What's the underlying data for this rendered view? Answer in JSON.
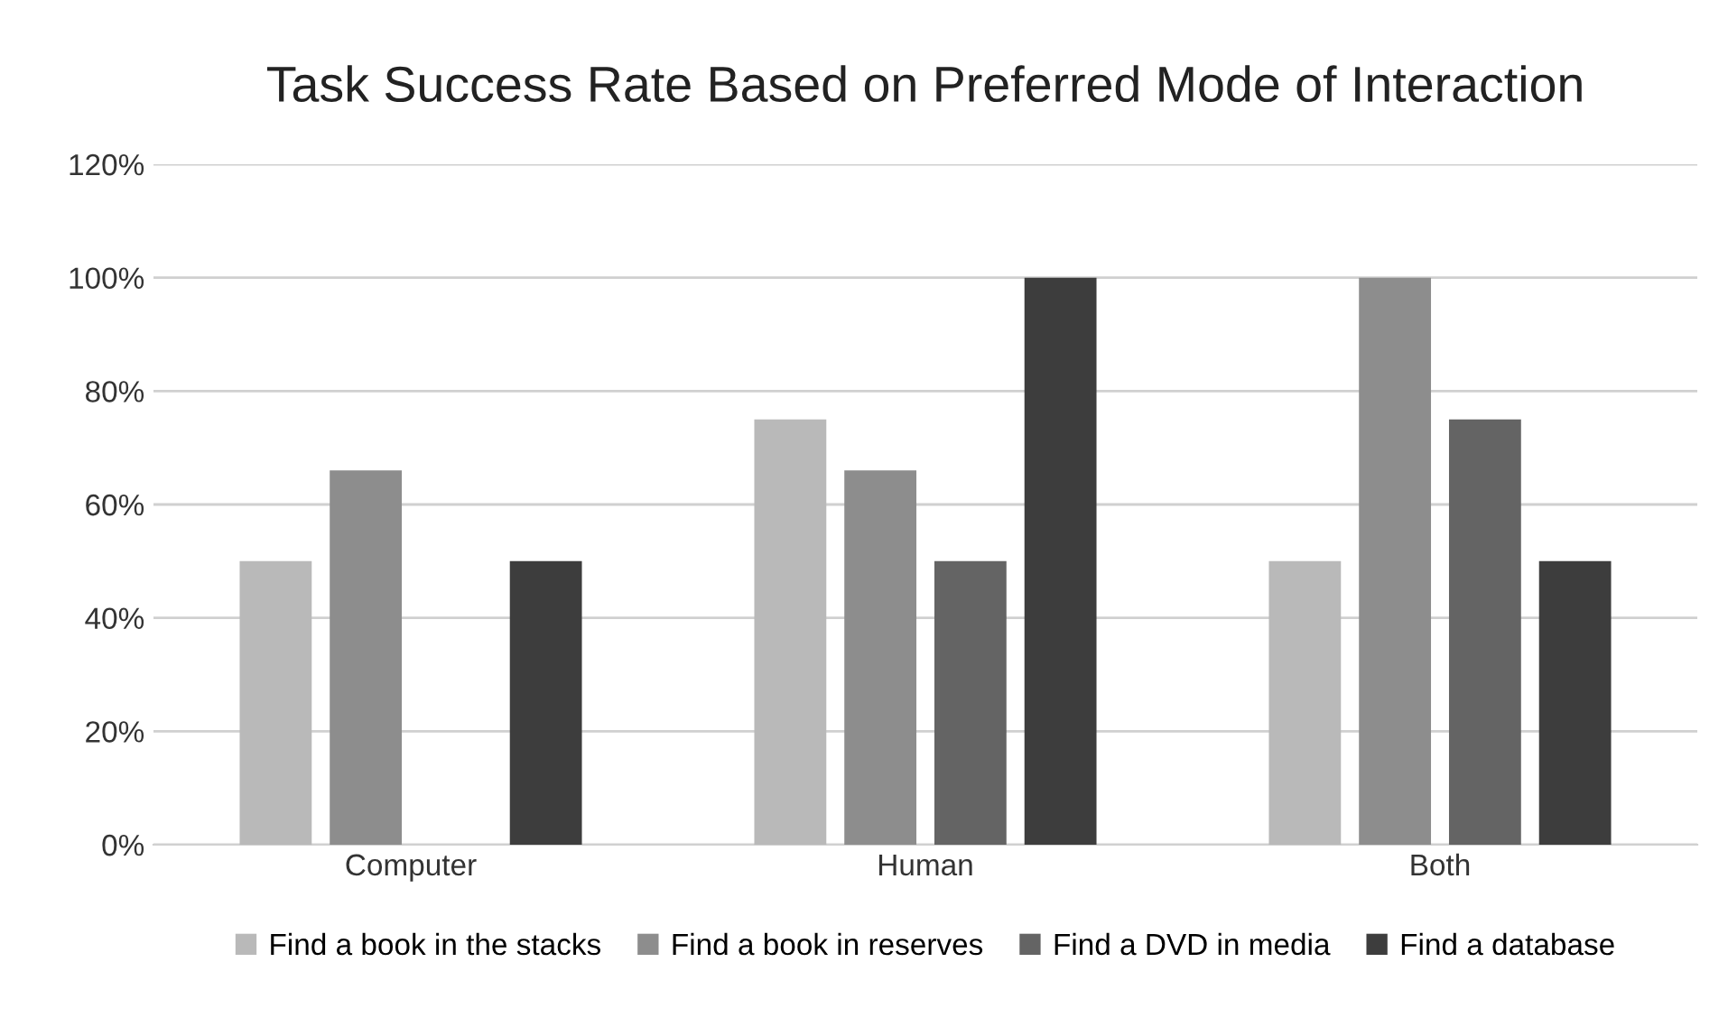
{
  "chart_data": {
    "type": "bar",
    "title": "Task Success Rate Based on Preferred Mode of Interaction",
    "categories": [
      "Computer",
      "Human",
      "Both"
    ],
    "series": [
      {
        "name": "Find a book in the stacks",
        "color": "#b9b9b9",
        "values": [
          50,
          75,
          50
        ]
      },
      {
        "name": "Find a book in reserves",
        "color": "#8d8d8d",
        "values": [
          66,
          66,
          100
        ]
      },
      {
        "name": "Find a DVD in media",
        "color": "#646464",
        "values": [
          0,
          50,
          75
        ]
      },
      {
        "name": "Find a database",
        "color": "#3d3d3d",
        "values": [
          50,
          100,
          50
        ]
      }
    ],
    "ylim": [
      0,
      120
    ],
    "yticks": [
      {
        "value": 0,
        "label": "0%"
      },
      {
        "value": 20,
        "label": "20%"
      },
      {
        "value": 40,
        "label": "40%"
      },
      {
        "value": 60,
        "label": "60%"
      },
      {
        "value": 80,
        "label": "80%"
      },
      {
        "value": 100,
        "label": "100%"
      },
      {
        "value": 120,
        "label": "120%"
      }
    ],
    "grid": "y",
    "legend": "bottom"
  }
}
